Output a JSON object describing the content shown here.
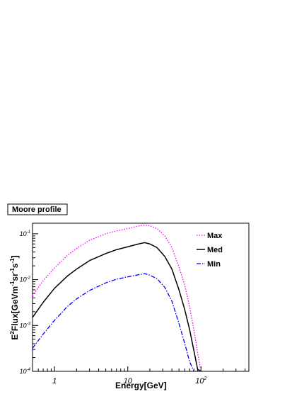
{
  "chart_data": {
    "type": "line",
    "title": "Moore profile",
    "xlabel": "Energy[GeV]",
    "ylabel": {
      "parts": [
        "E",
        "2",
        "Flux[GeVm",
        "-1",
        "sr",
        "-1",
        "s",
        "-1",
        "]"
      ]
    },
    "x_scale": "log",
    "y_scale": "log",
    "xlim": [
      0.5,
      450
    ],
    "ylim": [
      0.0001,
      0.17
    ],
    "x_ticks": [
      {
        "value": 1,
        "label": "1"
      },
      {
        "value": 10,
        "label": "10"
      },
      {
        "value": 100,
        "label": "10",
        "exp": "2"
      }
    ],
    "y_ticks": [
      {
        "value": 0.0001,
        "label": "10",
        "exp": "-4"
      },
      {
        "value": 0.001,
        "label": "10",
        "exp": "-3"
      },
      {
        "value": 0.01,
        "label": "10",
        "exp": "-2"
      },
      {
        "value": 0.1,
        "label": "10",
        "exp": "-1"
      }
    ],
    "grid": false,
    "legend_position": "top-right",
    "series": [
      {
        "name": "Max",
        "color": "#ff00ff",
        "style": "dotted",
        "x": [
          0.5,
          0.7,
          1,
          1.5,
          2,
          3,
          5,
          7,
          10,
          14,
          17,
          20,
          25,
          32,
          40,
          50,
          60,
          70,
          80,
          90,
          100
        ],
        "y": [
          0.0045,
          0.0095,
          0.018,
          0.034,
          0.048,
          0.072,
          0.1,
          0.115,
          0.13,
          0.148,
          0.155,
          0.15,
          0.13,
          0.09,
          0.05,
          0.019,
          0.0075,
          0.0025,
          0.0008,
          0.00025,
          0.0001
        ]
      },
      {
        "name": "Med",
        "color": "#000000",
        "style": "solid",
        "x": [
          0.5,
          0.7,
          1,
          1.5,
          2,
          3,
          5,
          7,
          10,
          14,
          17,
          20,
          25,
          32,
          40,
          50,
          60,
          70,
          80,
          90,
          100
        ],
        "y": [
          0.0015,
          0.0032,
          0.0065,
          0.012,
          0.017,
          0.026,
          0.037,
          0.045,
          0.052,
          0.06,
          0.064,
          0.06,
          0.05,
          0.032,
          0.017,
          0.006,
          0.0022,
          0.0008,
          0.00028,
          0.00011,
          0.0001
        ]
      },
      {
        "name": "Min",
        "color": "#0000ff",
        "style": "dashdot",
        "x": [
          0.5,
          0.7,
          1,
          1.5,
          2,
          3,
          5,
          7,
          10,
          14,
          17,
          20,
          25,
          32,
          40,
          50,
          60,
          70,
          80,
          90
        ],
        "y": [
          0.00032,
          0.00065,
          0.0013,
          0.0026,
          0.0038,
          0.0058,
          0.0085,
          0.0102,
          0.0115,
          0.0128,
          0.0135,
          0.0125,
          0.0105,
          0.0068,
          0.0034,
          0.0011,
          0.0004,
          0.00016,
          0.0001,
          0.0001
        ]
      }
    ]
  }
}
